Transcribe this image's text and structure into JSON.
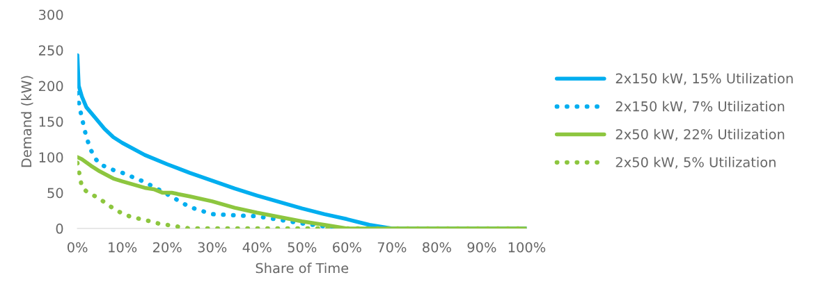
{
  "chart_data": {
    "type": "line",
    "xlabel": "Share of Time",
    "ylabel": "Demand (kW)",
    "xlim": [
      0,
      100
    ],
    "ylim": [
      0,
      300
    ],
    "xticks": [
      {
        "value": 0,
        "label": "0%"
      },
      {
        "value": 10,
        "label": "10%"
      },
      {
        "value": 20,
        "label": "20%"
      },
      {
        "value": 30,
        "label": "30%"
      },
      {
        "value": 40,
        "label": "40%"
      },
      {
        "value": 50,
        "label": "50%"
      },
      {
        "value": 60,
        "label": "60%"
      },
      {
        "value": 70,
        "label": "70%"
      },
      {
        "value": 80,
        "label": "80%"
      },
      {
        "value": 90,
        "label": "90%"
      },
      {
        "value": 100,
        "label": "100%"
      }
    ],
    "yticks": [
      0,
      50,
      100,
      150,
      200,
      250,
      300
    ],
    "grid": false,
    "legend": "right",
    "marker": "none",
    "series": [
      {
        "name": "2x150 kW, 15% Utilization",
        "color": "#00aeef",
        "line_style": "solid",
        "x": [
          0,
          0.3,
          1,
          2,
          4,
          6,
          8,
          10,
          15,
          20,
          25,
          30,
          35,
          40,
          45,
          50,
          55,
          60,
          65,
          70,
          100
        ],
        "values": [
          243,
          200,
          185,
          170,
          155,
          140,
          128,
          120,
          103,
          90,
          78,
          67,
          56,
          46,
          37,
          28,
          20,
          13,
          5,
          0,
          0
        ]
      },
      {
        "name": "2x150 kW, 7% Utilization",
        "color": "#00aeef",
        "line_style": "dotted",
        "x": [
          0,
          0.5,
          1,
          2,
          3,
          4,
          5,
          8,
          10,
          15,
          20,
          25,
          30,
          40,
          50,
          55,
          58
        ],
        "values": [
          190,
          170,
          155,
          128,
          110,
          98,
          90,
          82,
          78,
          65,
          48,
          30,
          20,
          17,
          7,
          3,
          0
        ]
      },
      {
        "name": "2x50 kW, 22% Utilization",
        "color": "#8dc63f",
        "line_style": "solid",
        "x": [
          0,
          1,
          3,
          5,
          8,
          10,
          15,
          17,
          19,
          21,
          25,
          30,
          35,
          40,
          45,
          50,
          55,
          60,
          100
        ],
        "values": [
          100,
          97,
          88,
          80,
          70,
          66,
          57,
          55,
          50,
          50,
          45,
          38,
          29,
          22,
          16,
          10,
          5,
          0,
          0
        ]
      },
      {
        "name": "2x50 kW, 5% Utilization",
        "color": "#8dc63f",
        "line_style": "dotted",
        "x": [
          0,
          0.5,
          1,
          2,
          4,
          6,
          8,
          10,
          12,
          15,
          18,
          20,
          23,
          25,
          100
        ],
        "values": [
          92,
          75,
          58,
          52,
          45,
          37,
          28,
          21,
          16,
          12,
          7,
          5,
          2,
          0,
          0
        ]
      }
    ]
  }
}
